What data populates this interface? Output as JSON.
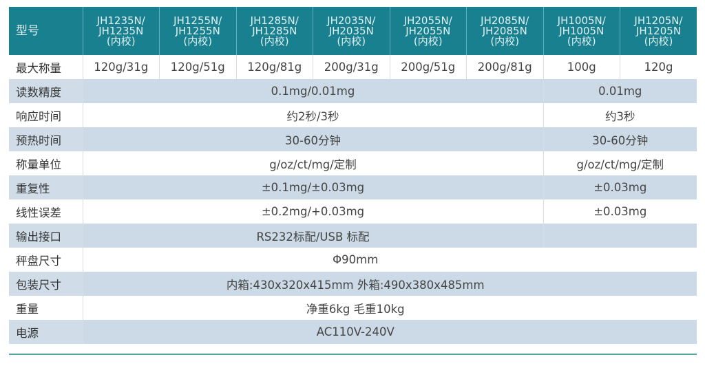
{
  "header": {
    "label": "型号",
    "models": [
      [
        "JH1235N/",
        "JH1235N",
        "(内校)"
      ],
      [
        "JH1255N/",
        "JH1255N",
        "(内校)"
      ],
      [
        "JH1285N/",
        "JH1285N",
        "(内校)"
      ],
      [
        "JH2035N/",
        "JH2035N",
        "(内校)"
      ],
      [
        "JH2055N/",
        "JH2055N",
        "(内校)"
      ],
      [
        "JH2085N/",
        "JH2085N",
        "(内校)"
      ],
      [
        "JH1005N/",
        "JH1005N",
        "(内校)"
      ],
      [
        "JH1205N/",
        "JH1205N",
        "(内校)"
      ]
    ]
  },
  "rows": {
    "capacity": {
      "label": "最大称量",
      "values": [
        "120g/31g",
        "120g/51g",
        "120g/81g",
        "200g/31g",
        "200g/51g",
        "200g/81g",
        "100g",
        "120g"
      ]
    },
    "readability": {
      "label": "读数精度",
      "a": "0.1mg/0.01mg",
      "b": "0.01mg"
    },
    "response": {
      "label": "响应时间",
      "a": "约2秒/3秒",
      "b": "约3秒"
    },
    "warmup": {
      "label": "预热时间",
      "a": "30-60分钟",
      "b": "30-60分钟"
    },
    "units": {
      "label": "称量单位",
      "a": "g/oz/ct/mg/定制",
      "b": "g/oz/ct/mg/定制"
    },
    "repeatability": {
      "label": "重复性",
      "a": "±0.1mg/±0.03mg",
      "b": "±0.03mg"
    },
    "linearity": {
      "label": "线性误差",
      "a": "±0.2mg/+0.03mg",
      "b": "±0.03mg"
    },
    "interface": {
      "label": "输出接口",
      "a": "RS232标配/USB 标配"
    },
    "pan": {
      "label": "秤盘尺寸",
      "value": "Φ90mm"
    },
    "package": {
      "label": "包装尺寸",
      "value": "内箱:430x320x415mm 外箱:490x380x485mm"
    },
    "weight": {
      "label": "重量",
      "value": "净重6kg 毛重10kg"
    },
    "power": {
      "label": "电源",
      "value": "AC110V-240V"
    }
  },
  "colors": {
    "header": "#19808f",
    "alt_row": "#cbdae6",
    "bottom_line": "#4fa7a7"
  }
}
